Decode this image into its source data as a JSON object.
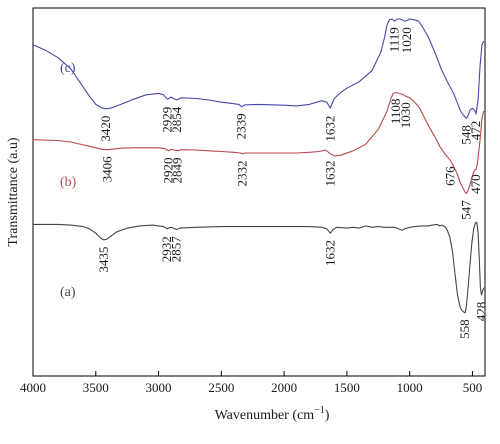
{
  "chart_data": {
    "type": "line",
    "xlabel": "Wavenumber (cm",
    "xlabel_sup": "−1",
    "xlabel_end": ")",
    "ylabel": "Transmittance (a.u)",
    "xlim": [
      4000,
      400
    ],
    "x_ticks": [
      4000,
      3500,
      3000,
      2500,
      2000,
      1500,
      1000,
      500
    ],
    "y_ticks": "none",
    "grid": false,
    "series": [
      {
        "tag": "(c)",
        "color": "#4848a8",
        "points": [
          [
            4000,
            0.1
          ],
          [
            3900,
            0.115
          ],
          [
            3800,
            0.135
          ],
          [
            3700,
            0.165
          ],
          [
            3600,
            0.215
          ],
          [
            3550,
            0.24
          ],
          [
            3500,
            0.262
          ],
          [
            3450,
            0.272
          ],
          [
            3420,
            0.274
          ],
          [
            3380,
            0.272
          ],
          [
            3300,
            0.262
          ],
          [
            3200,
            0.248
          ],
          [
            3100,
            0.236
          ],
          [
            3000,
            0.232
          ],
          [
            2960,
            0.236
          ],
          [
            2929,
            0.248
          ],
          [
            2900,
            0.242
          ],
          [
            2880,
            0.246
          ],
          [
            2854,
            0.25
          ],
          [
            2820,
            0.244
          ],
          [
            2700,
            0.246
          ],
          [
            2600,
            0.25
          ],
          [
            2500,
            0.256
          ],
          [
            2400,
            0.26
          ],
          [
            2360,
            0.262
          ],
          [
            2339,
            0.268
          ],
          [
            2310,
            0.263
          ],
          [
            2200,
            0.262
          ],
          [
            2000,
            0.264
          ],
          [
            1900,
            0.266
          ],
          [
            1800,
            0.262
          ],
          [
            1700,
            0.252
          ],
          [
            1660,
            0.256
          ],
          [
            1632,
            0.272
          ],
          [
            1600,
            0.246
          ],
          [
            1550,
            0.23
          ],
          [
            1500,
            0.218
          ],
          [
            1400,
            0.2
          ],
          [
            1300,
            0.17
          ],
          [
            1230,
            0.12
          ],
          [
            1200,
            0.08
          ],
          [
            1180,
            0.045
          ],
          [
            1160,
            0.032
          ],
          [
            1140,
            0.03
          ],
          [
            1119,
            0.036
          ],
          [
            1100,
            0.03
          ],
          [
            1080,
            0.03
          ],
          [
            1060,
            0.032
          ],
          [
            1040,
            0.036
          ],
          [
            1020,
            0.034
          ],
          [
            1000,
            0.03
          ],
          [
            960,
            0.032
          ],
          [
            930,
            0.036
          ],
          [
            900,
            0.05
          ],
          [
            850,
            0.08
          ],
          [
            800,
            0.12
          ],
          [
            750,
            0.165
          ],
          [
            700,
            0.2
          ],
          [
            650,
            0.232
          ],
          [
            620,
            0.258
          ],
          [
            600,
            0.276
          ],
          [
            580,
            0.288
          ],
          [
            560,
            0.296
          ],
          [
            548,
            0.3
          ],
          [
            535,
            0.292
          ],
          [
            520,
            0.278
          ],
          [
            500,
            0.272
          ],
          [
            480,
            0.28
          ],
          [
            472,
            0.288
          ],
          [
            455,
            0.25
          ],
          [
            440,
            0.16
          ],
          [
            425,
            0.1
          ],
          [
            410,
            0.09
          ]
        ],
        "peak_labels": [
          {
            "text": "3420",
            "x": 3420,
            "y": 0.276
          },
          {
            "text": "2929",
            "x": 2929,
            "y": 0.252
          },
          {
            "text": "2854",
            "x": 2854,
            "y": 0.252
          },
          {
            "text": "2339",
            "x": 2339,
            "y": 0.27
          },
          {
            "text": "1632",
            "x": 1632,
            "y": 0.276
          },
          {
            "text": "1119",
            "x": 1119,
            "y": 0.036
          },
          {
            "text": "1020",
            "x": 1020,
            "y": 0.036
          },
          {
            "text": "548",
            "x": 548,
            "y": 0.302
          },
          {
            "text": "472",
            "x": 472,
            "y": 0.29
          }
        ]
      },
      {
        "tag": "(b)",
        "color": "#b84848",
        "points": [
          [
            4000,
            0.358
          ],
          [
            3800,
            0.36
          ],
          [
            3700,
            0.364
          ],
          [
            3600,
            0.372
          ],
          [
            3500,
            0.38
          ],
          [
            3450,
            0.384
          ],
          [
            3406,
            0.385
          ],
          [
            3350,
            0.383
          ],
          [
            3300,
            0.381
          ],
          [
            3200,
            0.38
          ],
          [
            3100,
            0.38
          ],
          [
            3000,
            0.38
          ],
          [
            2950,
            0.382
          ],
          [
            2920,
            0.388
          ],
          [
            2895,
            0.384
          ],
          [
            2875,
            0.386
          ],
          [
            2849,
            0.388
          ],
          [
            2820,
            0.385
          ],
          [
            2700,
            0.386
          ],
          [
            2600,
            0.388
          ],
          [
            2500,
            0.39
          ],
          [
            2400,
            0.392
          ],
          [
            2350,
            0.394
          ],
          [
            2332,
            0.396
          ],
          [
            2310,
            0.394
          ],
          [
            2200,
            0.394
          ],
          [
            2000,
            0.394
          ],
          [
            1900,
            0.394
          ],
          [
            1800,
            0.392
          ],
          [
            1720,
            0.39
          ],
          [
            1670,
            0.386
          ],
          [
            1632,
            0.396
          ],
          [
            1600,
            0.402
          ],
          [
            1550,
            0.4
          ],
          [
            1450,
            0.388
          ],
          [
            1350,
            0.37
          ],
          [
            1250,
            0.33
          ],
          [
            1180,
            0.28
          ],
          [
            1150,
            0.246
          ],
          [
            1130,
            0.232
          ],
          [
            1108,
            0.23
          ],
          [
            1080,
            0.232
          ],
          [
            1050,
            0.236
          ],
          [
            1030,
            0.24
          ],
          [
            1000,
            0.244
          ],
          [
            960,
            0.256
          ],
          [
            920,
            0.272
          ],
          [
            880,
            0.3
          ],
          [
            840,
            0.326
          ],
          [
            800,
            0.35
          ],
          [
            760,
            0.376
          ],
          [
            720,
            0.396
          ],
          [
            700,
            0.404
          ],
          [
            676,
            0.414
          ],
          [
            650,
            0.43
          ],
          [
            620,
            0.452
          ],
          [
            600,
            0.472
          ],
          [
            575,
            0.49
          ],
          [
            560,
            0.5
          ],
          [
            547,
            0.504
          ],
          [
            535,
            0.496
          ],
          [
            520,
            0.48
          ],
          [
            505,
            0.462
          ],
          [
            490,
            0.446
          ],
          [
            480,
            0.44
          ],
          [
            470,
            0.438
          ],
          [
            460,
            0.42
          ],
          [
            440,
            0.36
          ],
          [
            425,
            0.3
          ],
          [
            410,
            0.28
          ]
        ],
        "peak_labels": [
          {
            "text": "3406",
            "x": 3406,
            "y": 0.387
          },
          {
            "text": "2920",
            "x": 2920,
            "y": 0.39
          },
          {
            "text": "2849",
            "x": 2849,
            "y": 0.39
          },
          {
            "text": "2332",
            "x": 2332,
            "y": 0.398
          },
          {
            "text": "1632",
            "x": 1632,
            "y": 0.398
          },
          {
            "text": "1108",
            "x": 1108,
            "y": 0.23
          },
          {
            "text": "1030",
            "x": 1030,
            "y": 0.24
          },
          {
            "text": "676",
            "x": 676,
            "y": 0.414
          },
          {
            "text": "547",
            "x": 547,
            "y": 0.506
          },
          {
            "text": "470",
            "x": 470,
            "y": 0.436
          }
        ]
      },
      {
        "tag": "(a)",
        "color": "#454545",
        "points": [
          [
            4000,
            0.588
          ],
          [
            3800,
            0.588
          ],
          [
            3700,
            0.59
          ],
          [
            3600,
            0.594
          ],
          [
            3550,
            0.6
          ],
          [
            3500,
            0.612
          ],
          [
            3470,
            0.622
          ],
          [
            3450,
            0.628
          ],
          [
            3435,
            0.63
          ],
          [
            3410,
            0.628
          ],
          [
            3380,
            0.62
          ],
          [
            3330,
            0.608
          ],
          [
            3250,
            0.598
          ],
          [
            3150,
            0.592
          ],
          [
            3050,
            0.59
          ],
          [
            3000,
            0.592
          ],
          [
            2960,
            0.594
          ],
          [
            2932,
            0.6
          ],
          [
            2905,
            0.596
          ],
          [
            2880,
            0.598
          ],
          [
            2857,
            0.602
          ],
          [
            2830,
            0.598
          ],
          [
            2700,
            0.596
          ],
          [
            2500,
            0.594
          ],
          [
            2300,
            0.594
          ],
          [
            2100,
            0.594
          ],
          [
            1900,
            0.594
          ],
          [
            1800,
            0.594
          ],
          [
            1700,
            0.596
          ],
          [
            1660,
            0.6
          ],
          [
            1632,
            0.612
          ],
          [
            1610,
            0.602
          ],
          [
            1580,
            0.596
          ],
          [
            1500,
            0.598
          ],
          [
            1450,
            0.596
          ],
          [
            1400,
            0.598
          ],
          [
            1350,
            0.592
          ],
          [
            1300,
            0.596
          ],
          [
            1250,
            0.594
          ],
          [
            1200,
            0.596
          ],
          [
            1150,
            0.596
          ],
          [
            1120,
            0.596
          ],
          [
            1090,
            0.6
          ],
          [
            1060,
            0.604
          ],
          [
            1040,
            0.6
          ],
          [
            1000,
            0.596
          ],
          [
            960,
            0.594
          ],
          [
            900,
            0.592
          ],
          [
            850,
            0.592
          ],
          [
            820,
            0.59
          ],
          [
            780,
            0.588
          ],
          [
            760,
            0.592
          ],
          [
            740,
            0.59
          ],
          [
            720,
            0.594
          ],
          [
            700,
            0.604
          ],
          [
            680,
            0.622
          ],
          [
            660,
            0.66
          ],
          [
            640,
            0.72
          ],
          [
            620,
            0.778
          ],
          [
            600,
            0.81
          ],
          [
            585,
            0.822
          ],
          [
            570,
            0.826
          ],
          [
            558,
            0.828
          ],
          [
            548,
            0.81
          ],
          [
            535,
            0.76
          ],
          [
            520,
            0.7
          ],
          [
            505,
            0.64
          ],
          [
            490,
            0.6
          ],
          [
            478,
            0.585
          ],
          [
            465,
            0.582
          ],
          [
            455,
            0.61
          ],
          [
            445,
            0.69
          ],
          [
            437,
            0.76
          ],
          [
            428,
            0.78
          ],
          [
            420,
            0.77
          ],
          [
            410,
            0.76
          ]
        ],
        "peak_labels": [
          {
            "text": "3435",
            "x": 3435,
            "y": 0.632
          },
          {
            "text": "2932",
            "x": 2932,
            "y": 0.604
          },
          {
            "text": "2857",
            "x": 2857,
            "y": 0.604
          },
          {
            "text": "1632",
            "x": 1632,
            "y": 0.614
          },
          {
            "text": "558",
            "x": 558,
            "y": 0.83
          },
          {
            "text": "428",
            "x": 428,
            "y": 0.782
          }
        ]
      }
    ]
  }
}
